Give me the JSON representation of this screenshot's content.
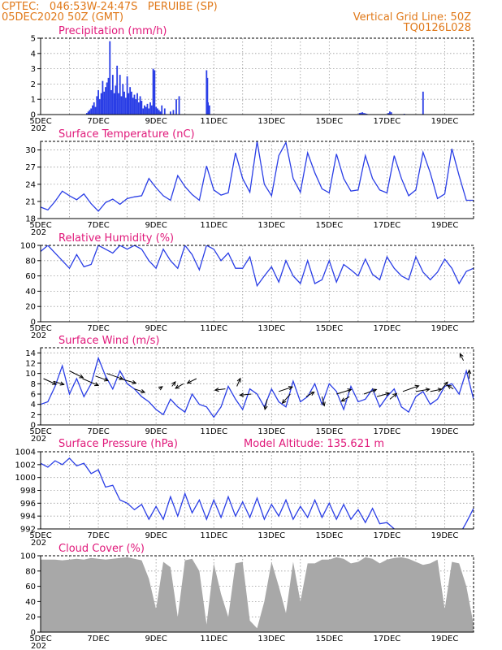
{
  "header": {
    "line1_left": "CPTEC:   046:53W-24:47S   PERUIBE (SP)",
    "line2_left": "05DEC2020 50Z (GMT)",
    "line1_right": "Vertical Grid Line: 50Z",
    "line2_right": "TQ0126L028"
  },
  "colors": {
    "header": "#e07818",
    "panel_title": "#e0187a",
    "line": "#2a3ee6",
    "bar": "#2a3ee6",
    "cloud": "#a8a8a8",
    "grid": "#9a9a9a"
  },
  "x_axis": {
    "labels": [
      "5DEC",
      "7DEC",
      "9DEC",
      "11DEC",
      "13DEC",
      "15DEC",
      "17DEC",
      "19DEC"
    ],
    "label_days": [
      0,
      2,
      4,
      6,
      8,
      10,
      12,
      14
    ],
    "start_tick_prefix": "202",
    "domain_days": [
      0,
      15
    ],
    "vertical_grid_every_days": 1
  },
  "chart_data": [
    {
      "id": "precip",
      "type": "bar",
      "title": "Precipitation (mm/h)",
      "ylim": [
        0,
        5
      ],
      "yticks": [
        0,
        1,
        2,
        3,
        4,
        5
      ],
      "grid": true,
      "x_days": [
        1.6,
        1.65,
        1.7,
        1.75,
        1.8,
        1.85,
        1.9,
        1.95,
        2.0,
        2.05,
        2.1,
        2.15,
        2.2,
        2.25,
        2.3,
        2.35,
        2.4,
        2.45,
        2.5,
        2.55,
        2.6,
        2.65,
        2.7,
        2.75,
        2.8,
        2.85,
        2.9,
        2.95,
        3.0,
        3.05,
        3.1,
        3.15,
        3.2,
        3.25,
        3.3,
        3.35,
        3.4,
        3.45,
        3.5,
        3.55,
        3.6,
        3.65,
        3.7,
        3.75,
        3.8,
        3.85,
        3.9,
        3.95,
        4.0,
        4.05,
        4.1,
        4.15,
        4.2,
        4.3,
        4.5,
        4.6,
        4.7,
        4.8,
        5.75,
        5.78,
        5.8,
        5.85,
        11.05,
        11.1,
        11.15,
        11.2,
        11.25,
        11.3,
        12.05,
        12.1,
        12.15,
        12.6,
        13.25
      ],
      "values": [
        0.1,
        0.2,
        0.3,
        0.4,
        0.6,
        0.8,
        0.5,
        1.2,
        1.6,
        1.0,
        1.4,
        2.2,
        1.5,
        1.8,
        2.1,
        2.4,
        4.8,
        1.6,
        2.6,
        1.4,
        1.9,
        3.2,
        1.4,
        2.6,
        1.2,
        2.0,
        1.5,
        1.1,
        2.5,
        1.4,
        1.8,
        1.5,
        1.1,
        1.3,
        1.0,
        1.4,
        0.8,
        1.2,
        0.9,
        0.4,
        0.6,
        0.5,
        0.7,
        0.4,
        0.8,
        0.6,
        3.0,
        2.9,
        0.5,
        0.4,
        0.3,
        0.2,
        0.6,
        0.4,
        0.2,
        0.3,
        1.0,
        1.2,
        2.9,
        2.4,
        0.8,
        0.6,
        0.1,
        0.12,
        0.15,
        0.1,
        0.08,
        0.05,
        0.1,
        0.2,
        0.15,
        0.05,
        1.5
      ]
    },
    {
      "id": "temperature",
      "type": "line",
      "title": "Surface Temperature (nC)",
      "ylim": [
        18,
        31.5
      ],
      "yticks": [
        18,
        21,
        24,
        27,
        30
      ],
      "grid": true,
      "x_days": [
        0.0,
        0.25,
        0.5,
        0.75,
        1.0,
        1.25,
        1.5,
        1.75,
        2.0,
        2.25,
        2.5,
        2.75,
        3.0,
        3.25,
        3.5,
        3.75,
        4.0,
        4.25,
        4.5,
        4.75,
        5.0,
        5.25,
        5.5,
        5.75,
        6.0,
        6.25,
        6.5,
        6.75,
        7.0,
        7.25,
        7.5,
        7.75,
        8.0,
        8.25,
        8.5,
        8.75,
        9.0,
        9.25,
        9.5,
        9.75,
        10.0,
        10.25,
        10.5,
        10.75,
        11.0,
        11.25,
        11.5,
        11.75,
        12.0,
        12.25,
        12.5,
        12.75,
        13.0,
        13.25,
        13.5,
        13.75,
        14.0,
        14.25,
        14.5,
        14.75,
        15.0
      ],
      "values": [
        20.0,
        19.5,
        21.0,
        22.8,
        22.0,
        21.3,
        22.3,
        20.6,
        19.3,
        20.8,
        21.4,
        20.5,
        21.5,
        21.8,
        22.0,
        25.0,
        23.4,
        22.0,
        21.2,
        25.5,
        23.6,
        22.2,
        21.2,
        27.2,
        23.0,
        22.1,
        22.5,
        29.5,
        25.0,
        22.6,
        31.5,
        24.0,
        22.0,
        29.0,
        31.3,
        25.0,
        22.6,
        29.5,
        26.0,
        23.2,
        22.5,
        29.3,
        25.0,
        22.8,
        23.0,
        29.0,
        25.0,
        23.0,
        22.5,
        29.0,
        25.0,
        22.0,
        23.0,
        29.6,
        26.0,
        21.5,
        22.3,
        30.2,
        25.5,
        21.2,
        21.2
      ]
    },
    {
      "id": "humidity",
      "type": "line",
      "title": "Relative Humidity (%)",
      "ylim": [
        0,
        100
      ],
      "yticks": [
        0,
        20,
        40,
        60,
        80,
        100
      ],
      "grid": true,
      "x_days": [
        0.0,
        0.25,
        0.5,
        0.75,
        1.0,
        1.25,
        1.5,
        1.75,
        2.0,
        2.25,
        2.5,
        2.75,
        3.0,
        3.25,
        3.5,
        3.75,
        4.0,
        4.25,
        4.5,
        4.75,
        5.0,
        5.25,
        5.5,
        5.75,
        6.0,
        6.25,
        6.5,
        6.75,
        7.0,
        7.25,
        7.5,
        7.75,
        8.0,
        8.25,
        8.5,
        8.75,
        9.0,
        9.25,
        9.5,
        9.75,
        10.0,
        10.25,
        10.5,
        10.75,
        11.0,
        11.25,
        11.5,
        11.75,
        12.0,
        12.25,
        12.5,
        12.75,
        13.0,
        13.25,
        13.5,
        13.75,
        14.0,
        14.25,
        14.5,
        14.75,
        15.0
      ],
      "values": [
        92,
        100,
        90,
        80,
        70,
        88,
        72,
        75,
        100,
        95,
        90,
        100,
        95,
        100,
        95,
        80,
        70,
        95,
        80,
        70,
        100,
        88,
        68,
        100,
        95,
        80,
        90,
        70,
        70,
        85,
        47,
        60,
        72,
        52,
        80,
        60,
        50,
        80,
        50,
        55,
        80,
        52,
        75,
        68,
        60,
        82,
        62,
        55,
        85,
        70,
        60,
        55,
        85,
        65,
        55,
        65,
        82,
        70,
        50,
        66,
        70
      ]
    },
    {
      "id": "wind",
      "type": "line",
      "title": "Surface Wind (m/s)",
      "ylim": [
        0,
        15
      ],
      "yticks": [
        0,
        2,
        4,
        6,
        8,
        10,
        12,
        14
      ],
      "grid": true,
      "x_days": [
        0.0,
        0.25,
        0.5,
        0.75,
        1.0,
        1.25,
        1.5,
        1.75,
        2.0,
        2.25,
        2.5,
        2.75,
        3.0,
        3.25,
        3.5,
        3.75,
        4.0,
        4.25,
        4.5,
        4.75,
        5.0,
        5.25,
        5.5,
        5.75,
        6.0,
        6.25,
        6.5,
        6.75,
        7.0,
        7.25,
        7.5,
        7.75,
        8.0,
        8.25,
        8.5,
        8.75,
        9.0,
        9.25,
        9.5,
        9.75,
        10.0,
        10.25,
        10.5,
        10.75,
        11.0,
        11.25,
        11.5,
        11.75,
        12.0,
        12.25,
        12.5,
        12.75,
        13.0,
        13.25,
        13.5,
        13.75,
        14.0,
        14.25,
        14.5,
        14.75,
        15.0
      ],
      "values": [
        4.0,
        4.5,
        7.5,
        11.5,
        6.0,
        9.0,
        5.5,
        8.0,
        13.0,
        9.5,
        7.0,
        10.5,
        8.0,
        7.0,
        5.5,
        4.5,
        3.0,
        2.0,
        5.0,
        3.5,
        2.5,
        6.0,
        4.0,
        3.5,
        1.5,
        3.5,
        7.5,
        5.0,
        3.0,
        7.0,
        6.0,
        3.5,
        7.0,
        4.5,
        3.5,
        8.5,
        4.5,
        5.5,
        8.0,
        4.0,
        8.0,
        6.5,
        3.0,
        7.5,
        4.5,
        5.0,
        7.0,
        3.5,
        5.5,
        7.0,
        3.5,
        2.5,
        5.5,
        6.5,
        4.0,
        5.0,
        7.5,
        8.0,
        6.0,
        10.5,
        5.0
      ]
    },
    {
      "id": "wind_vectors",
      "type": "scatter",
      "x_days": [
        0.1,
        0.45,
        1.0,
        1.45,
        1.9,
        2.3,
        2.75,
        3.25,
        4.1,
        4.55,
        4.95,
        5.4,
        6.4,
        6.8,
        7.3,
        7.85,
        8.25,
        8.65,
        9.2,
        9.75,
        10.25,
        10.7,
        11.2,
        11.65,
        12.1,
        12.55,
        13.0,
        13.5,
        13.9,
        14.3,
        14.65,
        14.85
      ],
      "speeds": [
        9.0,
        8.5,
        10.5,
        9.0,
        9.5,
        10.0,
        9.0,
        7.0,
        7.0,
        7.5,
        8.0,
        9.0,
        7.0,
        7.5,
        6.0,
        5.0,
        6.5,
        6.0,
        5.5,
        5.5,
        6.0,
        5.5,
        6.0,
        5.5,
        5.0,
        6.5,
        6.5,
        6.5,
        7.0,
        7.0,
        12.5,
        9.0
      ],
      "u_components": [
        2.2,
        1.8,
        2.4,
        2.8,
        2.2,
        2.8,
        2.8,
        1.8,
        0.6,
        0.6,
        -1.4,
        -1.6,
        -1.8,
        0.6,
        -2.0,
        -0.4,
        2.4,
        -1.4,
        1.4,
        0.4,
        2.6,
        -1.4,
        2.2,
        2.2,
        1.2,
        2.8,
        2.4,
        2.0,
        1.0,
        -1.0,
        -0.6,
        0.0
      ],
      "v_components": [
        -1.0,
        -0.6,
        -1.2,
        -1.2,
        -0.8,
        -1.0,
        -0.8,
        -0.6,
        0.4,
        0.8,
        -0.8,
        -0.8,
        -0.2,
        1.4,
        -0.2,
        -1.8,
        0.8,
        -1.6,
        0.8,
        -1.6,
        0.8,
        -0.8,
        0.8,
        0.6,
        1.0,
        1.0,
        0.4,
        0.4,
        1.2,
        0.6,
        1.2,
        1.5
      ]
    },
    {
      "id": "pressure",
      "type": "line",
      "title": "Surface Pressure (hPa)",
      "subtitle": "Model Altitude: 135.621 m",
      "ylim": [
        992,
        1004
      ],
      "yticks": [
        992,
        994,
        996,
        998,
        1000,
        1002,
        1004
      ],
      "grid": true,
      "x_days": [
        0.0,
        0.25,
        0.5,
        0.75,
        1.0,
        1.25,
        1.5,
        1.75,
        2.0,
        2.25,
        2.5,
        2.75,
        3.0,
        3.25,
        3.5,
        3.75,
        4.0,
        4.25,
        4.5,
        4.75,
        5.0,
        5.25,
        5.5,
        5.75,
        6.0,
        6.25,
        6.5,
        6.75,
        7.0,
        7.25,
        7.5,
        7.75,
        8.0,
        8.25,
        8.5,
        8.75,
        9.0,
        9.25,
        9.5,
        9.75,
        10.0,
        10.25,
        10.5,
        10.75,
        11.0,
        11.25,
        11.5,
        11.75,
        12.0,
        12.25,
        12.5,
        12.75,
        13.0,
        13.25,
        13.5,
        13.75,
        14.0,
        14.25,
        14.5,
        14.75,
        15.0
      ],
      "values": [
        1002.2,
        1001.6,
        1002.6,
        1002.0,
        1003.0,
        1001.8,
        1002.2,
        1000.6,
        1001.2,
        998.5,
        998.8,
        996.5,
        996.0,
        995.0,
        995.8,
        993.5,
        995.5,
        993.5,
        997.0,
        994.0,
        997.5,
        994.5,
        996.5,
        993.5,
        996.5,
        993.8,
        997.0,
        994.0,
        996.2,
        993.8,
        996.8,
        993.5,
        995.8,
        994.0,
        996.5,
        993.5,
        995.5,
        993.8,
        996.5,
        993.8,
        996.0,
        993.5,
        995.8,
        993.5,
        995.0,
        993.0,
        995.2,
        992.8,
        993.0,
        992.0,
        991.5,
        991.0,
        991.5,
        990.8,
        991.0,
        990.5,
        991.0,
        991.2,
        991.0,
        993.0,
        995.2
      ]
    },
    {
      "id": "cloud",
      "type": "area",
      "title": "Cloud Cover (%)",
      "ylim": [
        0,
        100
      ],
      "yticks": [
        0,
        20,
        40,
        60,
        80,
        100
      ],
      "grid": true,
      "x_days": [
        0.0,
        0.25,
        0.5,
        0.75,
        1.0,
        1.25,
        1.5,
        1.75,
        2.0,
        2.25,
        2.5,
        2.75,
        3.0,
        3.25,
        3.5,
        3.75,
        4.0,
        4.25,
        4.5,
        4.75,
        5.0,
        5.25,
        5.5,
        5.75,
        6.0,
        6.25,
        6.5,
        6.75,
        7.0,
        7.25,
        7.5,
        7.75,
        8.0,
        8.25,
        8.5,
        8.75,
        9.0,
        9.25,
        9.5,
        9.75,
        10.0,
        10.25,
        10.5,
        10.75,
        11.0,
        11.25,
        11.5,
        11.75,
        12.0,
        12.25,
        12.5,
        12.75,
        13.0,
        13.25,
        13.5,
        13.75,
        14.0,
        14.25,
        14.5,
        14.75,
        15.0
      ],
      "values": [
        95,
        95,
        95,
        94,
        95,
        96,
        95,
        97,
        96,
        95,
        96,
        97,
        98,
        96,
        94,
        70,
        30,
        92,
        85,
        20,
        94,
        96,
        80,
        10,
        90,
        50,
        20,
        90,
        92,
        15,
        5,
        40,
        92,
        60,
        25,
        92,
        40,
        90,
        90,
        95,
        95,
        98,
        96,
        90,
        92,
        98,
        96,
        90,
        95,
        97,
        98,
        96,
        92,
        88,
        90,
        95,
        30,
        92,
        90,
        60,
        10
      ]
    }
  ]
}
